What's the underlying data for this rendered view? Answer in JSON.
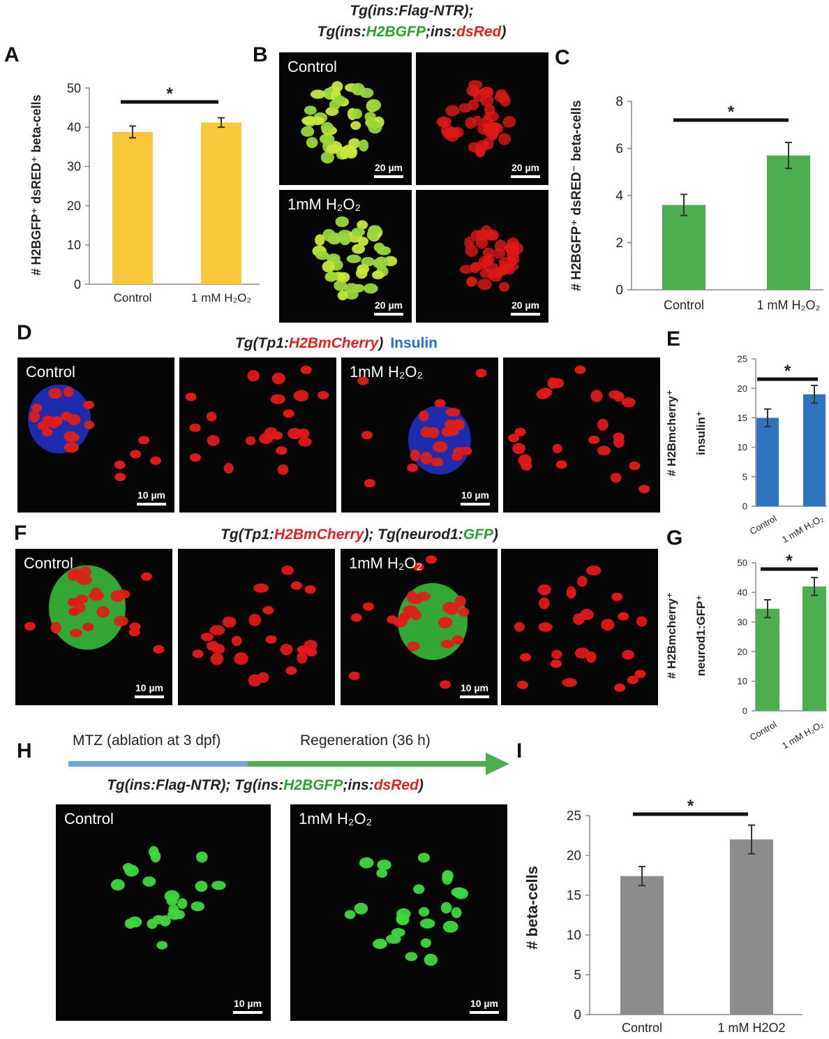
{
  "chart_data": [
    {
      "type": "bar",
      "ylabel": "# H2BGFP⁺ dsRED⁺ beta-cells",
      "categories": [
        "Control",
        "1 mM H₂O₂"
      ],
      "values": [
        38.8,
        41.2
      ],
      "errors": [
        1.5,
        1.2
      ],
      "color": "#f8c83a",
      "ylim": [
        0,
        50
      ],
      "yticks": [
        0,
        10,
        20,
        30,
        40,
        50
      ],
      "annotation": "*"
    },
    {
      "type": "bar",
      "ylabel": "# H2BGFP⁺ dsRED⁻ beta-cells",
      "categories": [
        "Control",
        "1 mM H₂O₂"
      ],
      "values": [
        3.6,
        5.7
      ],
      "errors": [
        0.45,
        0.55
      ],
      "color": "#4cae4f",
      "ylim": [
        0,
        8
      ],
      "yticks": [
        0,
        2,
        4,
        6,
        8
      ],
      "annotation": "*"
    },
    {
      "type": "bar",
      "ylabel": [
        "# H2Bmcherry⁺",
        "insulin⁺"
      ],
      "categories": [
        "Control",
        "1 mM H₂O₂"
      ],
      "values": [
        15,
        19
      ],
      "errors": [
        1.5,
        1.5
      ],
      "color": "#2f74c0",
      "ylim": [
        0,
        25
      ],
      "yticks": [
        0,
        5,
        10,
        15,
        20,
        25
      ],
      "annotation": "*"
    },
    {
      "type": "bar",
      "ylabel": [
        "# H2Bmcherry⁺",
        "neurod1:GFP⁺"
      ],
      "categories": [
        "Control",
        "1 mM H₂O₂"
      ],
      "values": [
        34.5,
        42
      ],
      "errors": [
        3,
        3
      ],
      "color": "#4cae4f",
      "ylim": [
        0,
        50
      ],
      "yticks": [
        0,
        10,
        20,
        30,
        40,
        50
      ],
      "annotation": "*"
    },
    {
      "type": "bar",
      "ylabel": "# beta-cells",
      "categories": [
        "Control",
        "1 mM H2O2"
      ],
      "values": [
        17.4,
        22
      ],
      "errors": [
        1.2,
        1.8
      ],
      "color": "#8c8c8c",
      "ylim": [
        0,
        25
      ],
      "yticks": [
        0,
        5,
        10,
        15,
        20,
        25
      ],
      "annotation": "*"
    }
  ],
  "figure": {
    "panels": [
      "A",
      "B",
      "C",
      "D",
      "E",
      "F",
      "G",
      "H",
      "I"
    ],
    "header_b_line1": "Tg(ins:Flag-NTR);",
    "header_b_line2": [
      "Tg(ins:",
      "H2BGFP",
      ";ins:",
      "dsRed",
      ")"
    ],
    "header_d": [
      "Tg(Tp1:",
      "H2BmCherry",
      ")",
      "Insulin"
    ],
    "header_f": [
      "Tg(Tp1:",
      "H2BmCherry",
      "); Tg(neurod1:",
      "GFP",
      ")"
    ],
    "header_h": [
      "Tg(ins:Flag-NTR);  Tg(ins:",
      "H2BGFP",
      ";ins:",
      "dsRed",
      ")"
    ],
    "image_labels": [
      "Control",
      "1mM H₂O₂"
    ],
    "scale_bars": [
      "20 µm",
      "10 µm"
    ],
    "timeline": [
      "MTZ (ablation at 3 dpf)",
      "Regeneration (36 h)"
    ]
  }
}
